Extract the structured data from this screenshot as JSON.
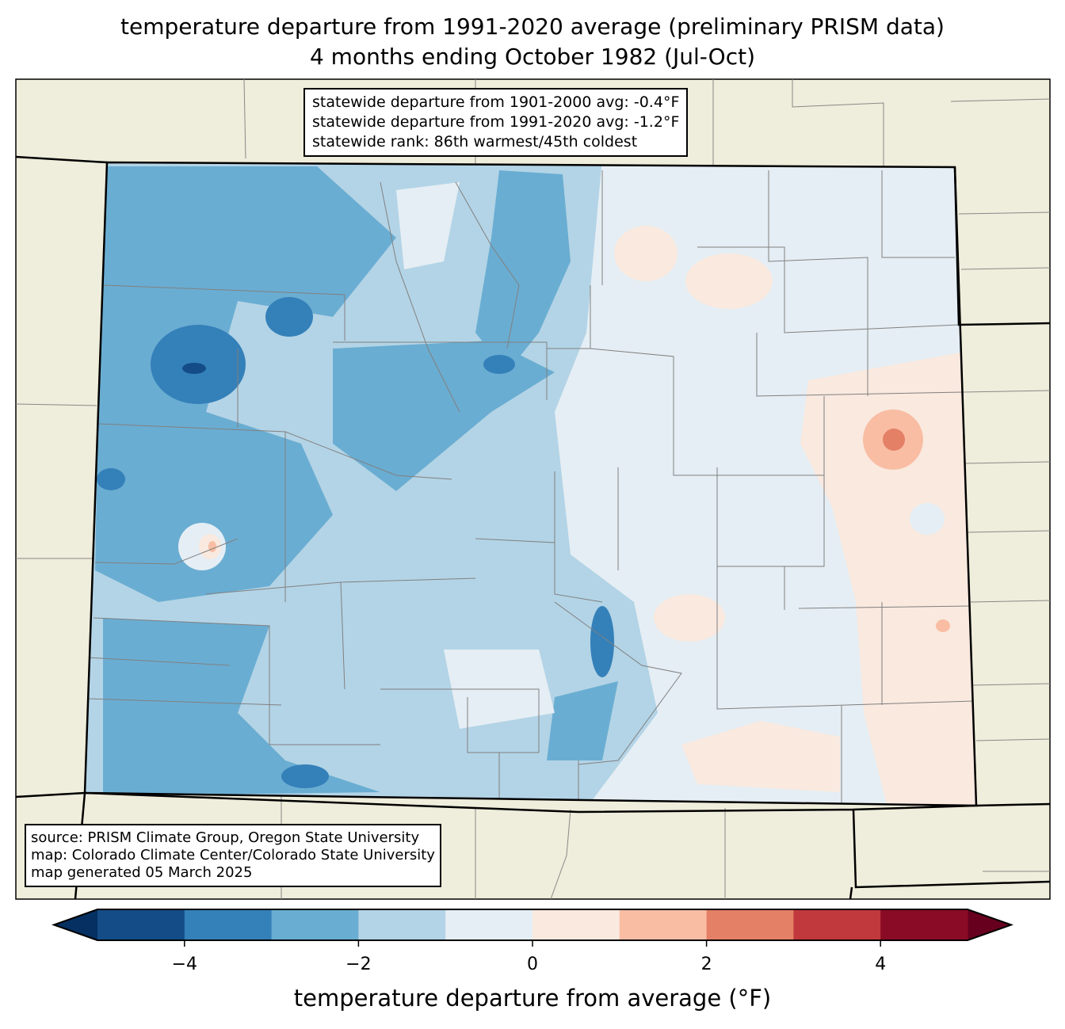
{
  "title": {
    "line1": "temperature departure from 1991-2020 average (preliminary PRISM data)",
    "line2": "4 months ending October 1982 (Jul-Oct)"
  },
  "stats": [
    "statewide departure from 1901-2000 avg: -0.4°F",
    "statewide departure from 1991-2020 avg: -1.2°F",
    "statewide rank: 86th warmest/45th coldest"
  ],
  "source": [
    "source: PRISM Climate Group, Oregon State University",
    "map: Colorado Climate Center/Colorado State University",
    "map generated 05 March 2025"
  ],
  "colorbar": {
    "label": "temperature departure from average (°F)",
    "min": -5,
    "max": 5,
    "ticks": [
      "−4",
      "−2",
      "0",
      "2",
      "4"
    ],
    "tick_values": [
      -4,
      -2,
      0,
      2,
      4
    ],
    "under_color": "#053061",
    "over_color": "#67001f",
    "colors": [
      "#144c87",
      "#3480b9",
      "#6aadd2",
      "#b3d4e6",
      "#e5eef4",
      "#f9e9df",
      "#f9bda3",
      "#e48066",
      "#c1393c",
      "#8a0b25"
    ]
  },
  "map_colors": {
    "land": "#efeddb",
    "border": "#000000",
    "county": "#808080"
  }
}
